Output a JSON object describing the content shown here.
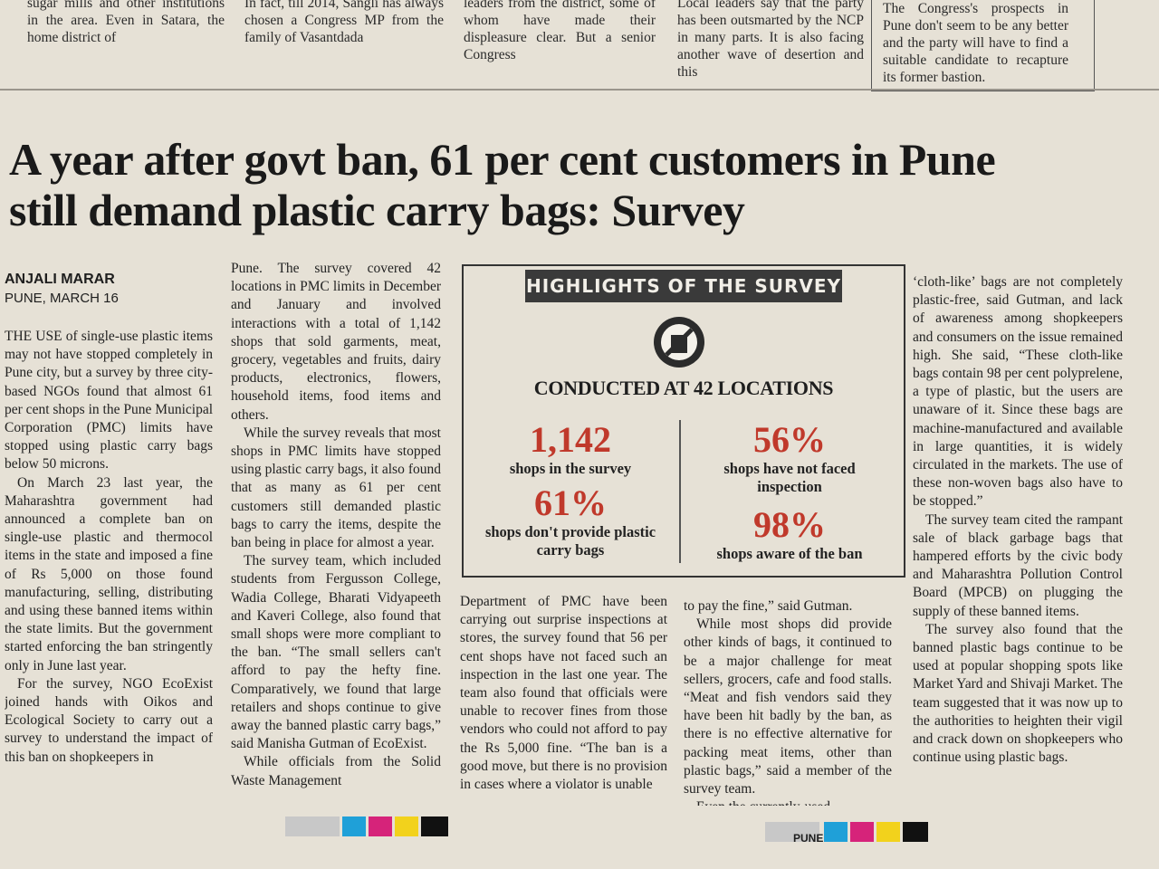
{
  "top_strip": [
    "sugar mills and other institutions in the area. Even in Satara, the home district of",
    "In fact, till 2014, Sangli has always chosen a Congress MP from the family of Vasantdada",
    "leaders from the district, some of whom have made their displeasure clear. But a senior Congress",
    "Local leaders say that the party has been outsmarted by the NCP in many parts. It is also facing another wave of desertion and this",
    "The Congress's prospects in Pune don't seem to be any better and the party will have to find a suitable candidate to recapture its former bastion."
  ],
  "headline": "A year after govt ban, 61 per cent customers in Pune still demand plastic carry bags: Survey",
  "byline": {
    "author": "ANJALI MARAR",
    "dateline": "PUNE, MARCH 16"
  },
  "columns": [
    [
      "THE USE of single-use plastic items may not have stopped completely in Pune city, but a survey by three city-based NGOs found that almost 61 per cent shops in the Pune Municipal Corporation (PMC) limits have stopped using plastic carry bags below 50 microns.",
      "On March 23 last year, the Maharashtra government had announced a complete ban on single-use plastic and thermocol items in the state and imposed a fine of Rs 5,000 on those found manufacturing, selling, distributing and using these banned items within the state limits. But the government started enforcing the ban stringently only in June last year.",
      "For the survey, NGO EcoExist joined hands with Oikos and Ecological Society to carry out a survey to understand the impact of this ban on shopkeepers in"
    ],
    [
      "Pune. The survey covered 42 locations in PMC limits in December and January and involved interactions with a total of 1,142 shops that sold garments, meat, grocery, vegetables and fruits, dairy products, electronics, flowers, household items, food items and others.",
      "While the survey reveals that most shops in PMC limits have stopped using plastic carry bags, it also found that as many as 61 per cent customers still demanded plastic bags to carry the items, despite the ban being in place for almost a year.",
      "The survey team, which included students from Fergusson College, Wadia College, Bharati Vidyapeeth and Kaveri College, also found that small shops were more compliant to the ban. “The small sellers can't afford to pay the hefty fine. Comparatively, we found that large retailers and shops continue to give away the banned plastic carry bags,” said Manisha Gutman of EcoExist.",
      "While officials from the Solid Waste Management"
    ],
    [
      "Department of PMC have been carrying out surprise inspections at stores, the survey found that 56 per cent shops have not faced such an inspection in the last one year. The team also found that officials were unable to recover fines from those vendors who could not afford to pay the Rs 5,000 fine. “The ban is a good move, but there is no provision in cases where a violator is unable"
    ],
    [
      "to pay the fine,” said Gutman.",
      "While most shops did provide other kinds of bags, it continued to be a major challenge for meat sellers, grocers, cafe and food stalls. “Meat and fish vendors said they have been hit badly by the ban, as there is no effective alternative for packing meat items, other than plastic bags,” said a member of the survey team.",
      "Even the currently-used"
    ],
    [
      "‘cloth-like’ bags are not completely plastic-free, said Gutman, and lack of awareness among shopkeepers and consumers on the issue remained high. She said, “These cloth-like bags contain 98 per cent polyprelene, a type of plastic, but the users are unaware of it. Since these bags are machine-manufactured and available in large quantities, it is widely circulated in the markets. The use of these non-woven bags also have to be stopped.”",
      "The survey team cited the rampant sale of black garbage bags that hampered efforts by the civic body and Maharashtra Pollution Control Board (MPCB) on plugging the supply of these banned items.",
      "The survey also found that the banned plastic bags continue to be used at popular shopping spots like Market Yard and Shivaji Market. The team suggested that it was now up to the authorities to heighten their vigil and crack down on shopkeepers who continue using plastic bags."
    ]
  ],
  "highlights": {
    "title": "HIGHLIGHTS OF THE SURVEY",
    "subtitle": "CONDUCTED AT 42 LOCATIONS",
    "stats": [
      {
        "value": "1,142",
        "label": "shops in the survey"
      },
      {
        "value": "56%",
        "label": "shops have not faced inspection"
      },
      {
        "value": "61%",
        "label": "shops don't provide plastic carry bags"
      },
      {
        "value": "98%",
        "label": "shops aware of the ban"
      }
    ]
  },
  "footer_label": "PUNE"
}
